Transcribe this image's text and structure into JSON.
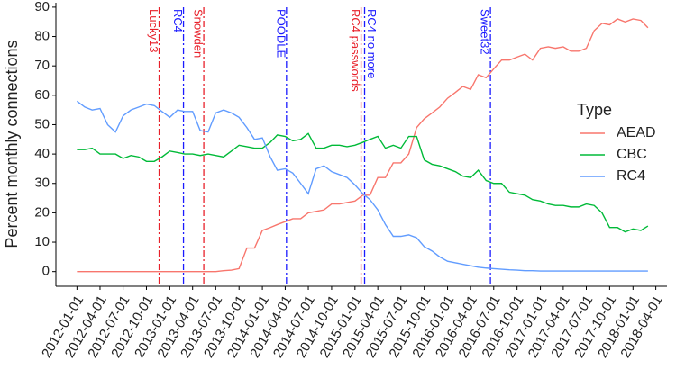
{
  "chart_data": {
    "type": "line",
    "y_label": "Percent monthly connections",
    "legend_title": "Type",
    "legend_position": "right",
    "x": [
      "2012-01-01",
      "2012-02-01",
      "2012-03-01",
      "2012-04-01",
      "2012-05-01",
      "2012-06-01",
      "2012-07-01",
      "2012-08-01",
      "2012-09-01",
      "2012-10-01",
      "2012-11-01",
      "2012-12-01",
      "2013-01-01",
      "2013-02-01",
      "2013-03-01",
      "2013-04-01",
      "2013-05-01",
      "2013-06-01",
      "2013-07-01",
      "2013-08-01",
      "2013-09-01",
      "2013-10-01",
      "2013-11-01",
      "2013-12-01",
      "2014-01-01",
      "2014-02-01",
      "2014-03-01",
      "2014-04-01",
      "2014-05-01",
      "2014-06-01",
      "2014-07-01",
      "2014-08-01",
      "2014-09-01",
      "2014-10-01",
      "2014-11-01",
      "2014-12-01",
      "2015-01-01",
      "2015-02-01",
      "2015-03-01",
      "2015-04-01",
      "2015-05-01",
      "2015-06-01",
      "2015-07-01",
      "2015-08-01",
      "2015-09-01",
      "2015-10-01",
      "2015-11-01",
      "2015-12-01",
      "2016-01-01",
      "2016-02-01",
      "2016-03-01",
      "2016-04-01",
      "2016-05-01",
      "2016-06-01",
      "2016-07-01",
      "2016-08-01",
      "2016-09-01",
      "2016-10-01",
      "2016-11-01",
      "2016-12-01",
      "2017-01-01",
      "2017-02-01",
      "2017-03-01",
      "2017-04-01",
      "2017-05-01",
      "2017-06-01",
      "2017-07-01",
      "2017-08-01",
      "2017-09-01",
      "2017-10-01",
      "2017-11-01",
      "2017-12-01",
      "2018-01-01",
      "2018-02-01",
      "2018-03-01"
    ],
    "series": [
      {
        "name": "AEAD",
        "color": "#F8766D",
        "values": [
          0,
          0,
          0,
          0,
          0,
          0,
          0,
          0,
          0,
          0,
          0,
          0,
          0,
          0,
          0,
          0,
          0,
          0,
          0,
          0.3,
          0.5,
          1,
          8,
          8,
          14,
          15,
          16,
          17,
          18,
          18,
          20,
          20.5,
          21,
          23,
          23,
          23.5,
          24,
          26,
          26,
          32,
          32,
          37,
          37,
          40,
          49,
          52,
          54,
          56,
          59,
          61,
          63,
          62,
          67,
          66,
          69,
          72,
          72,
          73,
          74,
          72,
          76,
          76.5,
          76,
          76.5,
          75,
          75,
          76,
          82,
          84.5,
          84,
          86,
          85,
          86,
          85.5,
          83
        ]
      },
      {
        "name": "CBC",
        "color": "#00BA38",
        "values": [
          41.5,
          41.5,
          42,
          40,
          40,
          40,
          38.5,
          39.5,
          39,
          37.5,
          37.5,
          39,
          41,
          40.5,
          40,
          40,
          39.5,
          40,
          39.5,
          39,
          41,
          43,
          42.5,
          42,
          42,
          44,
          46.5,
          46,
          44.5,
          45,
          47,
          42,
          42,
          43,
          43,
          42.5,
          43,
          44,
          45,
          46,
          42,
          43,
          42,
          46,
          46,
          38,
          36.5,
          36,
          35,
          34,
          32.5,
          32,
          34.5,
          31,
          30,
          30,
          27,
          26.5,
          26,
          24.5,
          24,
          23,
          22.5,
          22.5,
          22,
          22,
          23,
          22.5,
          20,
          15,
          15,
          13.5,
          14.5,
          14,
          15.5
        ]
      },
      {
        "name": "RC4",
        "color": "#619CFF",
        "values": [
          58,
          56,
          55,
          55.5,
          50,
          47.5,
          53,
          55,
          56,
          57,
          56.5,
          54.5,
          52.5,
          55,
          54.5,
          54.5,
          48,
          47.5,
          54,
          55,
          54,
          52.5,
          49,
          45,
          45.5,
          39,
          34.5,
          35,
          33.5,
          30,
          26.5,
          35,
          36,
          34,
          33,
          32,
          29.5,
          26.5,
          24.5,
          21,
          16,
          12,
          12,
          12.5,
          11.5,
          8.5,
          7,
          5,
          3.5,
          3,
          2.5,
          2,
          1.5,
          1.2,
          1,
          0.8,
          0.6,
          0.5,
          0.3,
          0.3,
          0.2,
          0.2,
          0.2,
          0.2,
          0.2,
          0.2,
          0.2,
          0.2,
          0.2,
          0.2,
          0.2,
          0.2,
          0.2,
          0.2,
          0.2
        ]
      }
    ],
    "events": [
      {
        "label": "Lucky13",
        "date": "2012-11-20",
        "color": "#e8202a"
      },
      {
        "label": "RC4",
        "date": "2013-02-24",
        "color": "#1a1aff"
      },
      {
        "label": "Snowden",
        "date": "2013-05-15",
        "color": "#e8202a"
      },
      {
        "label": "POODLE",
        "date": "2014-04-06",
        "color": "#1a1aff"
      },
      {
        "label": "RC4 passwords",
        "date": "2015-01-25",
        "color": "#e8202a"
      },
      {
        "label": "RC4 no more",
        "date": "2015-02-08",
        "color": "#1a1aff"
      },
      {
        "label": "Sweet32",
        "date": "2016-06-18",
        "color": "#1a1aff"
      }
    ],
    "xlim": [
      "2011-10-10",
      "2018-05-15"
    ],
    "xticks": [
      "2012-01-01",
      "2012-04-01",
      "2012-07-01",
      "2012-10-01",
      "2013-01-01",
      "2013-04-01",
      "2013-07-01",
      "2013-10-01",
      "2014-01-01",
      "2014-04-01",
      "2014-07-01",
      "2014-10-01",
      "2015-01-01",
      "2015-04-01",
      "2015-07-01",
      "2015-10-01",
      "2016-01-01",
      "2016-04-01",
      "2016-07-01",
      "2016-10-01",
      "2017-01-01",
      "2017-04-01",
      "2017-07-01",
      "2017-10-01",
      "2018-01-01",
      "2018-04-01"
    ],
    "ylim": [
      -5,
      91.5
    ],
    "yticks": [
      0,
      10,
      20,
      30,
      40,
      50,
      60,
      70,
      80,
      90
    ]
  }
}
